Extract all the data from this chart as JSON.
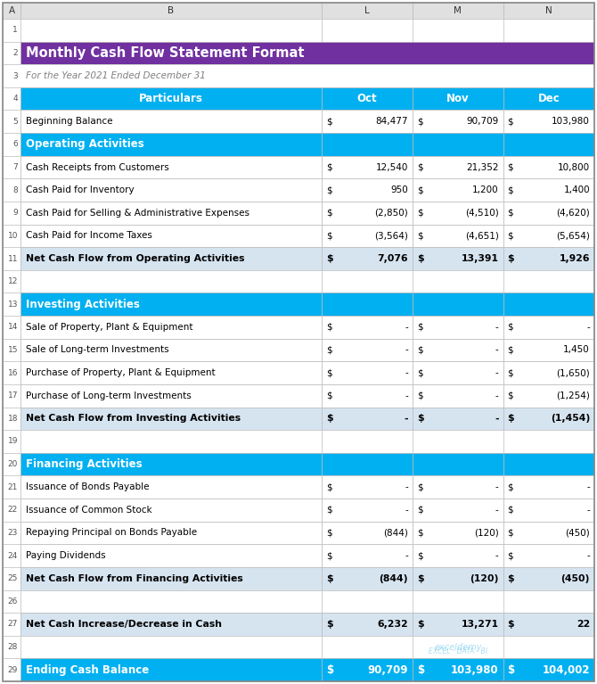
{
  "title": "Monthly Cash Flow Statement Format",
  "subtitle": "For the Year 2021 Ended December 31",
  "title_bg": "#7030A0",
  "title_color": "#FFFFFF",
  "header_bg": "#00B0F0",
  "header_color": "#FFFFFF",
  "section_bg": "#00B0F0",
  "section_color": "#FFFFFF",
  "net_bg": "#D6E4F0",
  "net_color": "#000000",
  "ending_bg": "#00B0F0",
  "ending_color": "#FFFFFF",
  "white_bg": "#FFFFFF",
  "col_label_bg": "#E0E0E0",
  "col_label_color": "#333333",
  "grid_color": "#BBBBBB",
  "rows": [
    {
      "type": "blank",
      "row": 1,
      "label": "",
      "oct_d": "",
      "oct_n": "",
      "nov_d": "",
      "nov_n": "",
      "dec_d": "",
      "dec_n": ""
    },
    {
      "type": "title",
      "row": 2,
      "label": "Monthly Cash Flow Statement Format",
      "oct_d": "",
      "oct_n": "",
      "nov_d": "",
      "nov_n": "",
      "dec_d": "",
      "dec_n": ""
    },
    {
      "type": "subtitle",
      "row": 3,
      "label": "For the Year 2021 Ended December 31",
      "oct_d": "",
      "oct_n": "",
      "nov_d": "",
      "nov_n": "",
      "dec_d": "",
      "dec_n": ""
    },
    {
      "type": "header",
      "row": 4,
      "label": "Particulars",
      "oct_d": "",
      "oct_n": "Oct",
      "nov_d": "",
      "nov_n": "Nov",
      "dec_d": "",
      "dec_n": "Dec"
    },
    {
      "type": "data",
      "row": 5,
      "label": "Beginning Balance",
      "oct_d": "$",
      "oct_n": "84,477",
      "nov_d": "$",
      "nov_n": "90,709",
      "dec_d": "$",
      "dec_n": "103,980"
    },
    {
      "type": "section",
      "row": 6,
      "label": "Operating Activities",
      "oct_d": "",
      "oct_n": "",
      "nov_d": "",
      "nov_n": "",
      "dec_d": "",
      "dec_n": ""
    },
    {
      "type": "data",
      "row": 7,
      "label": "Cash Receipts from Customers",
      "oct_d": "$",
      "oct_n": "12,540",
      "nov_d": "$",
      "nov_n": "21,352",
      "dec_d": "$",
      "dec_n": "10,800"
    },
    {
      "type": "data",
      "row": 8,
      "label": "Cash Paid for Inventory",
      "oct_d": "$",
      "oct_n": "950",
      "nov_d": "$",
      "nov_n": "1,200",
      "dec_d": "$",
      "dec_n": "1,400"
    },
    {
      "type": "data",
      "row": 9,
      "label": "Cash Paid for Selling & Administrative Expenses",
      "oct_d": "$",
      "oct_n": "(2,850)",
      "nov_d": "$",
      "nov_n": "(4,510)",
      "dec_d": "$",
      "dec_n": "(4,620)"
    },
    {
      "type": "data",
      "row": 10,
      "label": "Cash Paid for Income Taxes",
      "oct_d": "$",
      "oct_n": "(3,564)",
      "nov_d": "$",
      "nov_n": "(4,651)",
      "dec_d": "$",
      "dec_n": "(5,654)"
    },
    {
      "type": "net",
      "row": 11,
      "label": "Net Cash Flow from Operating Activities",
      "oct_d": "$",
      "oct_n": "7,076",
      "nov_d": "$",
      "nov_n": "13,391",
      "dec_d": "$",
      "dec_n": "1,926"
    },
    {
      "type": "blank",
      "row": 12,
      "label": "",
      "oct_d": "",
      "oct_n": "",
      "nov_d": "",
      "nov_n": "",
      "dec_d": "",
      "dec_n": ""
    },
    {
      "type": "section",
      "row": 13,
      "label": "Investing Activities",
      "oct_d": "",
      "oct_n": "",
      "nov_d": "",
      "nov_n": "",
      "dec_d": "",
      "dec_n": ""
    },
    {
      "type": "data",
      "row": 14,
      "label": "Sale of Property, Plant & Equipment",
      "oct_d": "$",
      "oct_n": "-",
      "nov_d": "$",
      "nov_n": "-",
      "dec_d": "$",
      "dec_n": "-"
    },
    {
      "type": "data",
      "row": 15,
      "label": "Sale of Long-term Investments",
      "oct_d": "$",
      "oct_n": "-",
      "nov_d": "$",
      "nov_n": "-",
      "dec_d": "$",
      "dec_n": "1,450"
    },
    {
      "type": "data",
      "row": 16,
      "label": "Purchase of Property, Plant & Equipment",
      "oct_d": "$",
      "oct_n": "-",
      "nov_d": "$",
      "nov_n": "-",
      "dec_d": "$",
      "dec_n": "(1,650)"
    },
    {
      "type": "data",
      "row": 17,
      "label": "Purchase of Long-term Investments",
      "oct_d": "$",
      "oct_n": "-",
      "nov_d": "$",
      "nov_n": "-",
      "dec_d": "$",
      "dec_n": "(1,254)"
    },
    {
      "type": "net",
      "row": 18,
      "label": "Net Cash Flow from Investing Activities",
      "oct_d": "$",
      "oct_n": "-",
      "nov_d": "$",
      "nov_n": "-",
      "dec_d": "$",
      "dec_n": "(1,454)"
    },
    {
      "type": "blank",
      "row": 19,
      "label": "",
      "oct_d": "",
      "oct_n": "",
      "nov_d": "",
      "nov_n": "",
      "dec_d": "",
      "dec_n": ""
    },
    {
      "type": "section",
      "row": 20,
      "label": "Financing Activities",
      "oct_d": "",
      "oct_n": "",
      "nov_d": "",
      "nov_n": "",
      "dec_d": "",
      "dec_n": ""
    },
    {
      "type": "data",
      "row": 21,
      "label": "Issuance of Bonds Payable",
      "oct_d": "$",
      "oct_n": "-",
      "nov_d": "$",
      "nov_n": "-",
      "dec_d": "$",
      "dec_n": "-"
    },
    {
      "type": "data",
      "row": 22,
      "label": "Issuance of Common Stock",
      "oct_d": "$",
      "oct_n": "-",
      "nov_d": "$",
      "nov_n": "-",
      "dec_d": "$",
      "dec_n": "-"
    },
    {
      "type": "data",
      "row": 23,
      "label": "Repaying Principal on Bonds Payable",
      "oct_d": "$",
      "oct_n": "(844)",
      "nov_d": "$",
      "nov_n": "(120)",
      "dec_d": "$",
      "dec_n": "(450)"
    },
    {
      "type": "data",
      "row": 24,
      "label": "Paying Dividends",
      "oct_d": "$",
      "oct_n": "-",
      "nov_d": "$",
      "nov_n": "-",
      "dec_d": "$",
      "dec_n": "-"
    },
    {
      "type": "net",
      "row": 25,
      "label": "Net Cash Flow from Financing Activities",
      "oct_d": "$",
      "oct_n": "(844)",
      "nov_d": "$",
      "nov_n": "(120)",
      "dec_d": "$",
      "dec_n": "(450)"
    },
    {
      "type": "blank",
      "row": 26,
      "label": "",
      "oct_d": "",
      "oct_n": "",
      "nov_d": "",
      "nov_n": "",
      "dec_d": "",
      "dec_n": ""
    },
    {
      "type": "net",
      "row": 27,
      "label": "Net Cash Increase/Decrease in Cash",
      "oct_d": "$",
      "oct_n": "6,232",
      "nov_d": "$",
      "nov_n": "13,271",
      "dec_d": "$",
      "dec_n": "22"
    },
    {
      "type": "blank",
      "row": 28,
      "label": "",
      "oct_d": "",
      "oct_n": "",
      "nov_d": "",
      "nov_n": "",
      "dec_d": "",
      "dec_n": ""
    },
    {
      "type": "ending",
      "row": 29,
      "label": "Ending Cash Balance",
      "oct_d": "$",
      "oct_n": "90,709",
      "nov_d": "$",
      "nov_n": "103,980",
      "dec_d": "$",
      "dec_n": "104,002"
    }
  ],
  "num_rows": 29,
  "fig_width": 6.7,
  "fig_height": 7.67,
  "watermark_text": "exceldemy",
  "watermark_sub": "EXCEL · DATA · BI"
}
